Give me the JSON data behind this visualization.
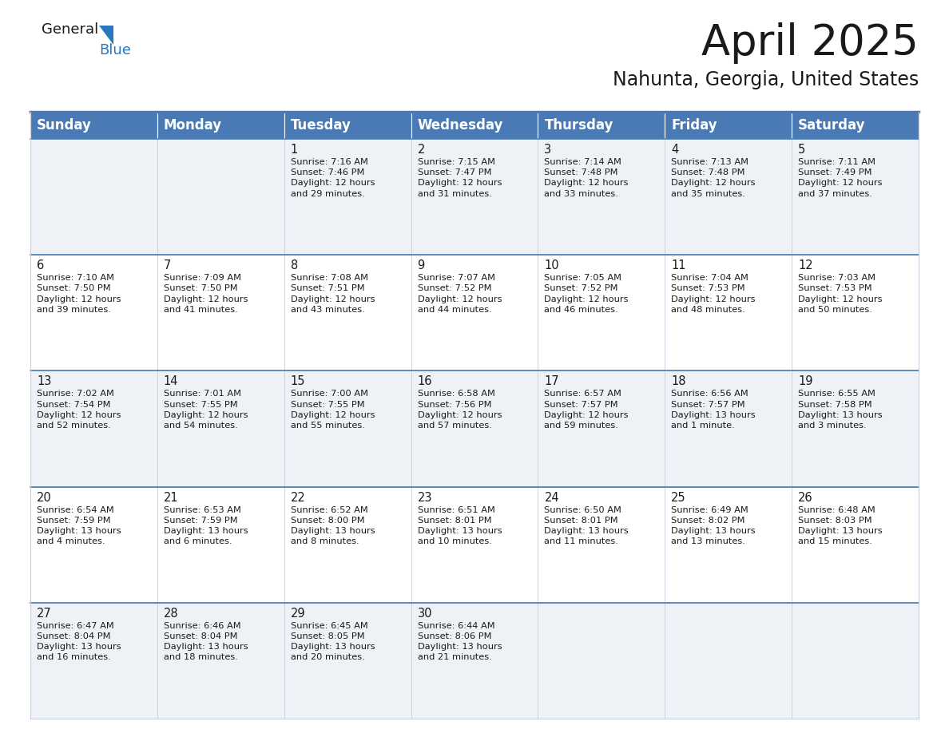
{
  "title": "April 2025",
  "subtitle": "Nahunta, Georgia, United States",
  "header_bg_color": "#4a7ab5",
  "header_text_color": "#ffffff",
  "row_bg_colors": [
    "#eef2f7",
    "#ffffff"
  ],
  "grid_line_color": "#c8d0dc",
  "day_headers": [
    "Sunday",
    "Monday",
    "Tuesday",
    "Wednesday",
    "Thursday",
    "Friday",
    "Saturday"
  ],
  "title_fontsize": 38,
  "subtitle_fontsize": 17,
  "header_fontsize": 12,
  "cell_day_fontsize": 10.5,
  "cell_text_fontsize": 8.2,
  "calendar": [
    [
      {
        "day": "",
        "lines": []
      },
      {
        "day": "",
        "lines": []
      },
      {
        "day": "1",
        "lines": [
          "Sunrise: 7:16 AM",
          "Sunset: 7:46 PM",
          "Daylight: 12 hours",
          "and 29 minutes."
        ]
      },
      {
        "day": "2",
        "lines": [
          "Sunrise: 7:15 AM",
          "Sunset: 7:47 PM",
          "Daylight: 12 hours",
          "and 31 minutes."
        ]
      },
      {
        "day": "3",
        "lines": [
          "Sunrise: 7:14 AM",
          "Sunset: 7:48 PM",
          "Daylight: 12 hours",
          "and 33 minutes."
        ]
      },
      {
        "day": "4",
        "lines": [
          "Sunrise: 7:13 AM",
          "Sunset: 7:48 PM",
          "Daylight: 12 hours",
          "and 35 minutes."
        ]
      },
      {
        "day": "5",
        "lines": [
          "Sunrise: 7:11 AM",
          "Sunset: 7:49 PM",
          "Daylight: 12 hours",
          "and 37 minutes."
        ]
      }
    ],
    [
      {
        "day": "6",
        "lines": [
          "Sunrise: 7:10 AM",
          "Sunset: 7:50 PM",
          "Daylight: 12 hours",
          "and 39 minutes."
        ]
      },
      {
        "day": "7",
        "lines": [
          "Sunrise: 7:09 AM",
          "Sunset: 7:50 PM",
          "Daylight: 12 hours",
          "and 41 minutes."
        ]
      },
      {
        "day": "8",
        "lines": [
          "Sunrise: 7:08 AM",
          "Sunset: 7:51 PM",
          "Daylight: 12 hours",
          "and 43 minutes."
        ]
      },
      {
        "day": "9",
        "lines": [
          "Sunrise: 7:07 AM",
          "Sunset: 7:52 PM",
          "Daylight: 12 hours",
          "and 44 minutes."
        ]
      },
      {
        "day": "10",
        "lines": [
          "Sunrise: 7:05 AM",
          "Sunset: 7:52 PM",
          "Daylight: 12 hours",
          "and 46 minutes."
        ]
      },
      {
        "day": "11",
        "lines": [
          "Sunrise: 7:04 AM",
          "Sunset: 7:53 PM",
          "Daylight: 12 hours",
          "and 48 minutes."
        ]
      },
      {
        "day": "12",
        "lines": [
          "Sunrise: 7:03 AM",
          "Sunset: 7:53 PM",
          "Daylight: 12 hours",
          "and 50 minutes."
        ]
      }
    ],
    [
      {
        "day": "13",
        "lines": [
          "Sunrise: 7:02 AM",
          "Sunset: 7:54 PM",
          "Daylight: 12 hours",
          "and 52 minutes."
        ]
      },
      {
        "day": "14",
        "lines": [
          "Sunrise: 7:01 AM",
          "Sunset: 7:55 PM",
          "Daylight: 12 hours",
          "and 54 minutes."
        ]
      },
      {
        "day": "15",
        "lines": [
          "Sunrise: 7:00 AM",
          "Sunset: 7:55 PM",
          "Daylight: 12 hours",
          "and 55 minutes."
        ]
      },
      {
        "day": "16",
        "lines": [
          "Sunrise: 6:58 AM",
          "Sunset: 7:56 PM",
          "Daylight: 12 hours",
          "and 57 minutes."
        ]
      },
      {
        "day": "17",
        "lines": [
          "Sunrise: 6:57 AM",
          "Sunset: 7:57 PM",
          "Daylight: 12 hours",
          "and 59 minutes."
        ]
      },
      {
        "day": "18",
        "lines": [
          "Sunrise: 6:56 AM",
          "Sunset: 7:57 PM",
          "Daylight: 13 hours",
          "and 1 minute."
        ]
      },
      {
        "day": "19",
        "lines": [
          "Sunrise: 6:55 AM",
          "Sunset: 7:58 PM",
          "Daylight: 13 hours",
          "and 3 minutes."
        ]
      }
    ],
    [
      {
        "day": "20",
        "lines": [
          "Sunrise: 6:54 AM",
          "Sunset: 7:59 PM",
          "Daylight: 13 hours",
          "and 4 minutes."
        ]
      },
      {
        "day": "21",
        "lines": [
          "Sunrise: 6:53 AM",
          "Sunset: 7:59 PM",
          "Daylight: 13 hours",
          "and 6 minutes."
        ]
      },
      {
        "day": "22",
        "lines": [
          "Sunrise: 6:52 AM",
          "Sunset: 8:00 PM",
          "Daylight: 13 hours",
          "and 8 minutes."
        ]
      },
      {
        "day": "23",
        "lines": [
          "Sunrise: 6:51 AM",
          "Sunset: 8:01 PM",
          "Daylight: 13 hours",
          "and 10 minutes."
        ]
      },
      {
        "day": "24",
        "lines": [
          "Sunrise: 6:50 AM",
          "Sunset: 8:01 PM",
          "Daylight: 13 hours",
          "and 11 minutes."
        ]
      },
      {
        "day": "25",
        "lines": [
          "Sunrise: 6:49 AM",
          "Sunset: 8:02 PM",
          "Daylight: 13 hours",
          "and 13 minutes."
        ]
      },
      {
        "day": "26",
        "lines": [
          "Sunrise: 6:48 AM",
          "Sunset: 8:03 PM",
          "Daylight: 13 hours",
          "and 15 minutes."
        ]
      }
    ],
    [
      {
        "day": "27",
        "lines": [
          "Sunrise: 6:47 AM",
          "Sunset: 8:04 PM",
          "Daylight: 13 hours",
          "and 16 minutes."
        ]
      },
      {
        "day": "28",
        "lines": [
          "Sunrise: 6:46 AM",
          "Sunset: 8:04 PM",
          "Daylight: 13 hours",
          "and 18 minutes."
        ]
      },
      {
        "day": "29",
        "lines": [
          "Sunrise: 6:45 AM",
          "Sunset: 8:05 PM",
          "Daylight: 13 hours",
          "and 20 minutes."
        ]
      },
      {
        "day": "30",
        "lines": [
          "Sunrise: 6:44 AM",
          "Sunset: 8:06 PM",
          "Daylight: 13 hours",
          "and 21 minutes."
        ]
      },
      {
        "day": "",
        "lines": []
      },
      {
        "day": "",
        "lines": []
      },
      {
        "day": "",
        "lines": []
      }
    ]
  ]
}
